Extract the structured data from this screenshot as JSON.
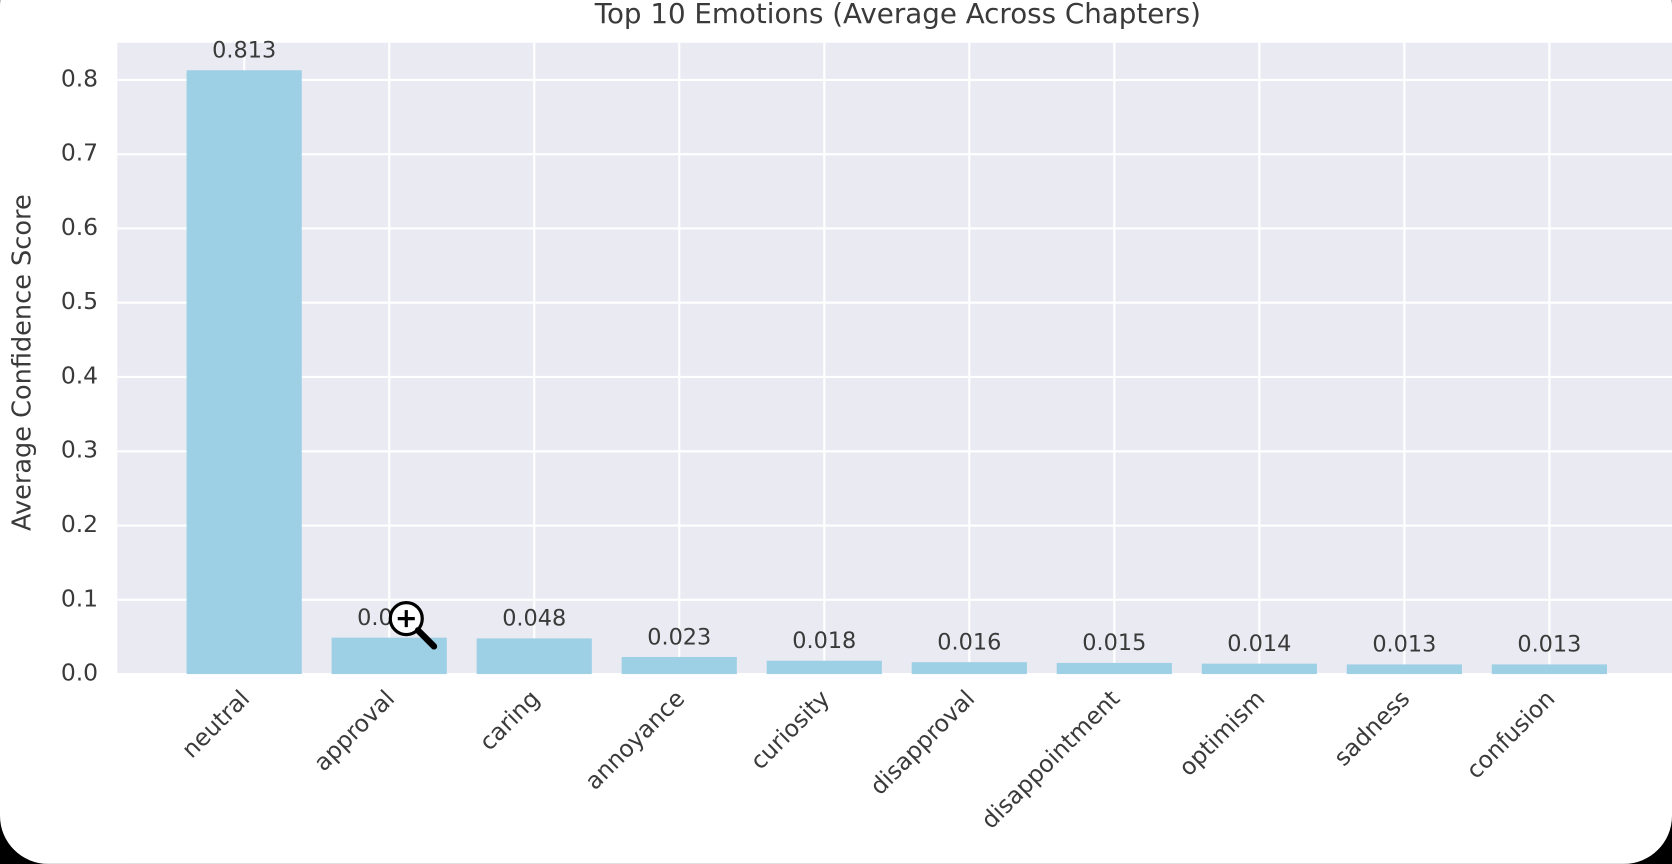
{
  "chart_data": {
    "type": "bar",
    "title": "Top 10 Emotions (Average Across Chapters)",
    "y_label": "Average Confidence Score",
    "categories": [
      "neutral",
      "approval",
      "caring",
      "annoyance",
      "curiosity",
      "disapproval",
      "disappointment",
      "optimism",
      "sadness",
      "confusion"
    ],
    "values": [
      0.813,
      0.049,
      0.048,
      0.023,
      0.018,
      0.016,
      0.015,
      0.014,
      0.013,
      0.013
    ],
    "color": "#9dcfe5",
    "ylim": [
      0,
      0.85
    ],
    "yticks": [
      {
        "value": 0,
        "label": "0.0"
      },
      0.1,
      0.2,
      0.3,
      0.4,
      0.5,
      0.6,
      0.7,
      0.8
    ],
    "grid": true
  }
}
